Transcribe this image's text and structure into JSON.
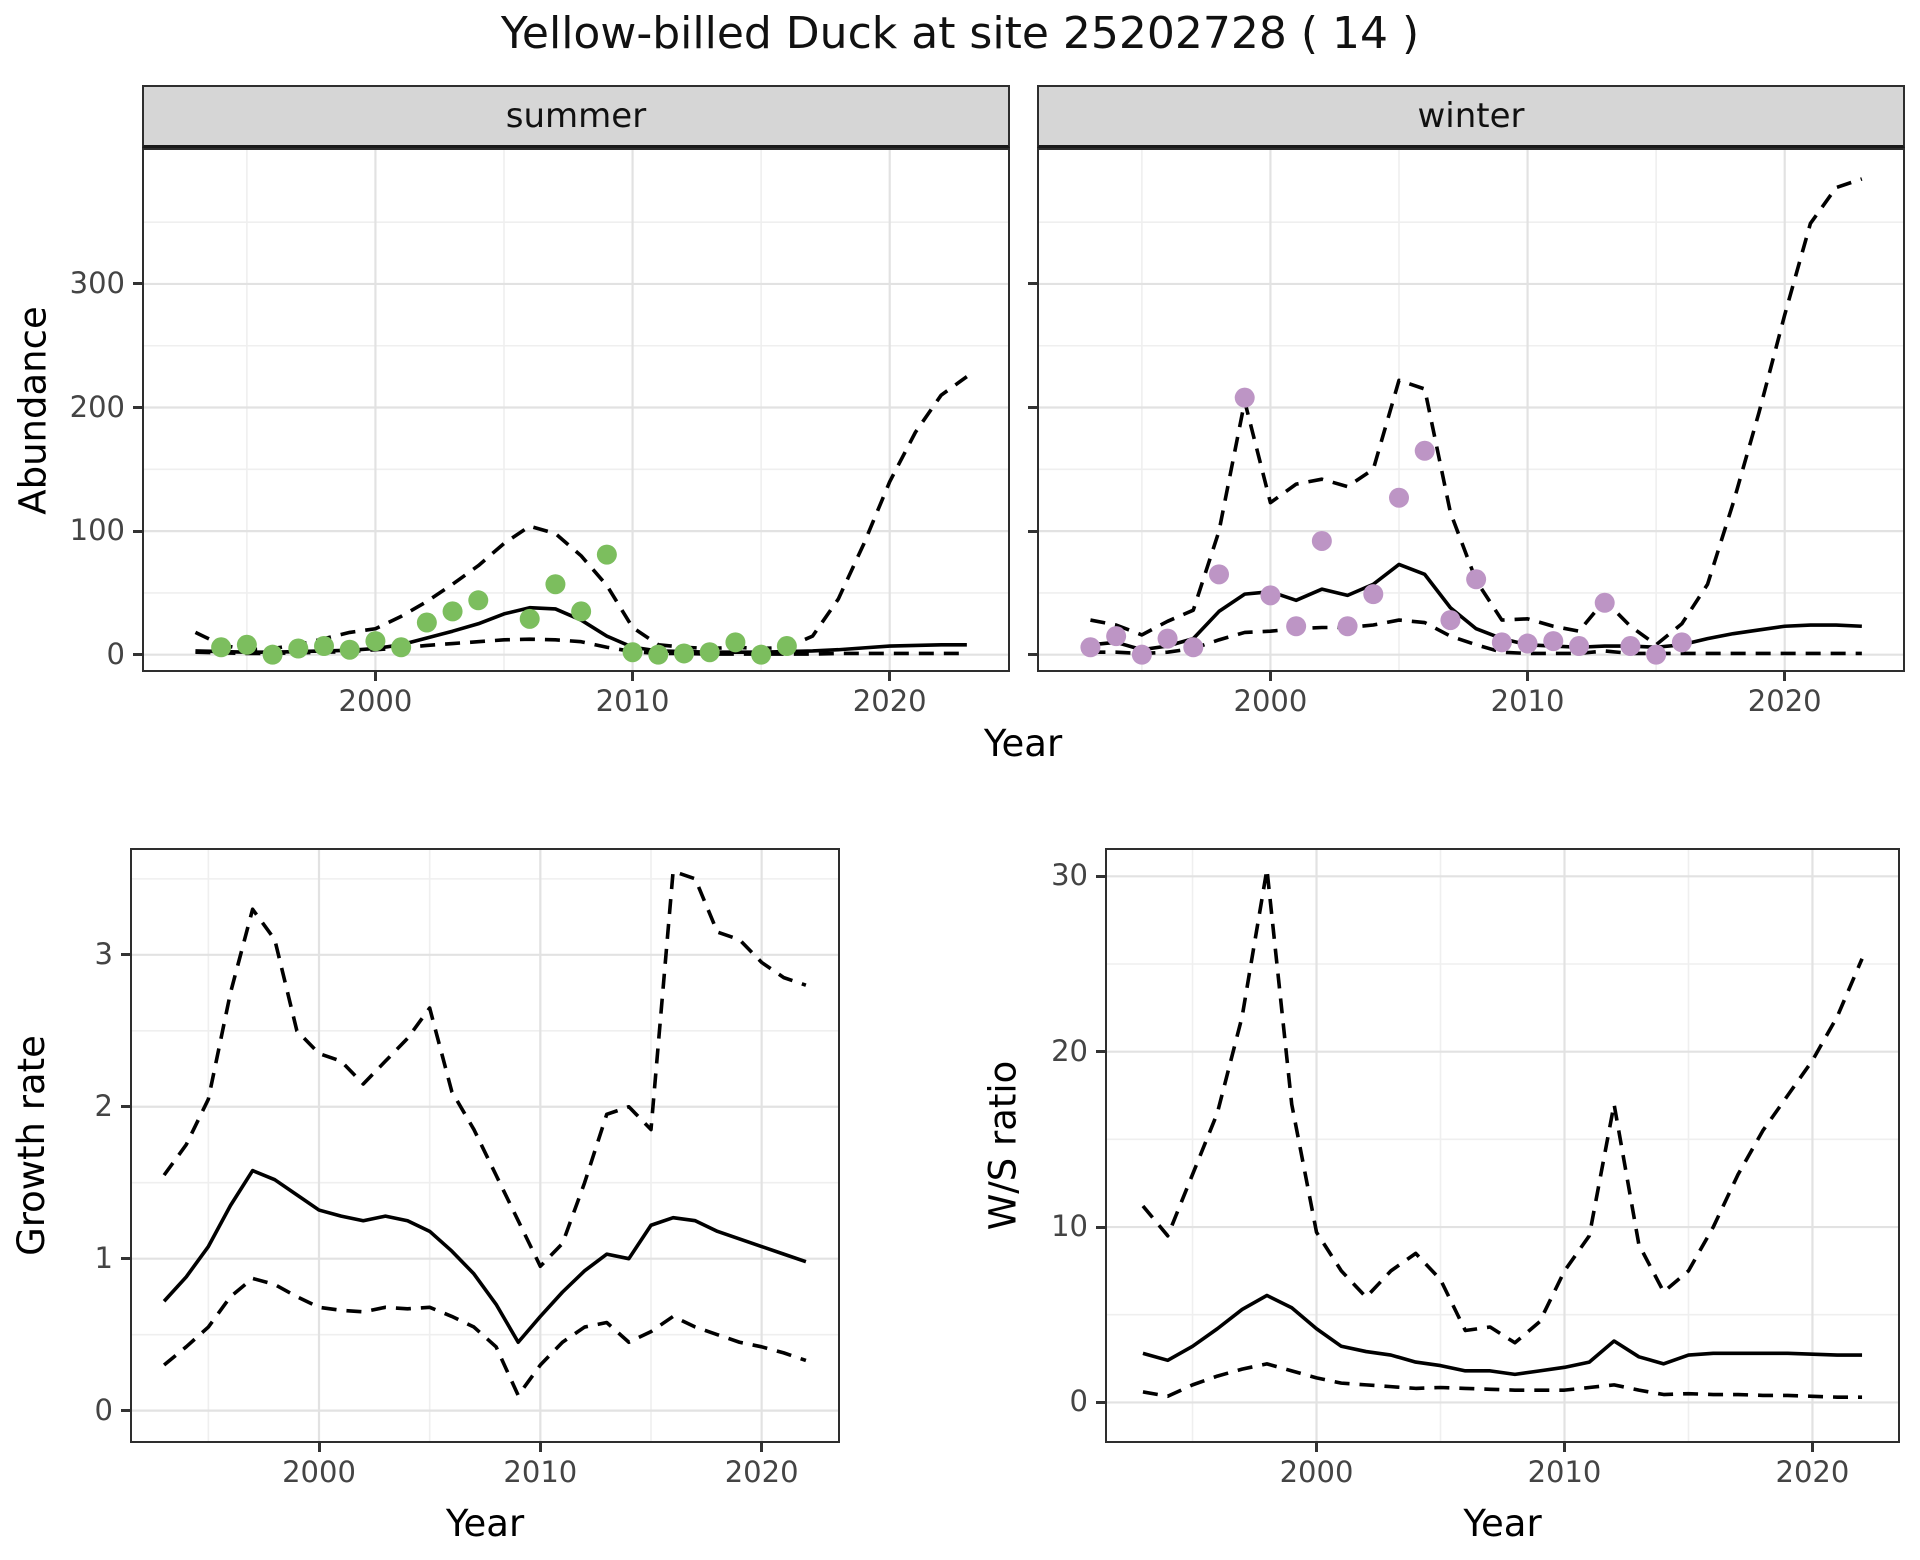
{
  "title": "Yellow-billed Duck at site 25202728 ( 14 )",
  "colors": {
    "summer_points": "#7cbe5e",
    "winter_points": "#bd95c5",
    "line": "#000000",
    "major_grid": "#e2e2e2",
    "minor_grid": "#efefef",
    "strip_bg": "#d6d6d6",
    "tick_text": "#444444"
  },
  "chart_data": [
    {
      "id": "abundance-summer",
      "type": "line",
      "facet_label": "summer",
      "xlabel": "Year",
      "ylabel": "Abundance",
      "xlim": [
        1991.0,
        2024.6
      ],
      "ylim": [
        -12.4,
        408.4
      ],
      "xticks": [
        2000,
        2010,
        2020
      ],
      "yticks": [
        0,
        100,
        200,
        300
      ],
      "xtick_labels": [
        "2000",
        "2010",
        "2020"
      ],
      "ytick_labels": [
        "0",
        "100",
        "200",
        "300"
      ],
      "grid": true,
      "legend": "none",
      "line_years": [
        1993,
        1994,
        1995,
        1996,
        1997,
        1998,
        1999,
        2000,
        2001,
        2002,
        2003,
        2004,
        2005,
        2006,
        2007,
        2008,
        2009,
        2010,
        2011,
        2012,
        2013,
        2014,
        2015,
        2016,
        2017,
        2018,
        2019,
        2020,
        2021,
        2022,
        2023
      ],
      "series": [
        {
          "name": "upper 95% CI",
          "style": "dashed",
          "values": [
            18,
            8,
            4,
            5,
            8,
            13,
            18,
            21,
            31,
            43,
            57,
            72,
            90,
            104,
            98,
            80,
            56,
            22,
            8,
            6,
            5,
            6,
            5,
            6,
            15,
            45,
            90,
            140,
            180,
            210,
            225
          ]
        },
        {
          "name": "median",
          "style": "solid",
          "values": [
            3,
            2.5,
            2,
            2,
            2.5,
            3,
            3.5,
            5,
            8,
            13.5,
            19,
            25,
            33,
            38,
            37,
            28,
            15,
            6,
            3,
            2.5,
            2,
            2,
            2,
            2.5,
            3,
            4,
            5.5,
            7,
            7.5,
            8,
            8
          ]
        },
        {
          "name": "lower 95% CI",
          "style": "dashed",
          "values": [
            2,
            1.5,
            1,
            1,
            1.5,
            2,
            2.5,
            4,
            5.5,
            7.5,
            9,
            10.5,
            12,
            12.5,
            12,
            10.5,
            6,
            2.5,
            1,
            1,
            0.5,
            0.5,
            0.5,
            0.5,
            0.5,
            1,
            1,
            1,
            1,
            1,
            1
          ]
        }
      ],
      "points": {
        "name": "observed counts",
        "color_key": "summer_points",
        "years": [
          1994,
          1995,
          1996,
          1997,
          1998,
          1999,
          2000,
          2001,
          2002,
          2003,
          2004,
          2006,
          2007,
          2008,
          2009,
          2010,
          2011,
          2012,
          2013,
          2014,
          2015,
          2016
        ],
        "values": [
          6,
          8,
          0,
          5,
          7,
          4,
          11,
          6,
          26,
          35,
          44,
          29,
          57,
          35,
          81,
          2,
          0,
          1,
          2,
          10,
          0,
          7
        ]
      }
    },
    {
      "id": "abundance-winter",
      "type": "line",
      "facet_label": "winter",
      "xlabel": "Year",
      "ylabel": "Abundance",
      "xlim": [
        1991.0,
        2024.6
      ],
      "ylim": [
        -12.4,
        408.4
      ],
      "xticks": [
        2000,
        2010,
        2020
      ],
      "yticks": [
        0,
        100,
        200,
        300
      ],
      "xtick_labels": [
        "2000",
        "2010",
        "2020"
      ],
      "ytick_labels": [
        "0",
        "100",
        "200",
        "300"
      ],
      "grid": true,
      "legend": "none",
      "line_years": [
        1993,
        1994,
        1995,
        1996,
        1997,
        1998,
        1999,
        2000,
        2001,
        2002,
        2003,
        2004,
        2005,
        2006,
        2007,
        2008,
        2009,
        2010,
        2011,
        2012,
        2013,
        2014,
        2015,
        2016,
        2017,
        2018,
        2019,
        2020,
        2021,
        2022,
        2023
      ],
      "series": [
        {
          "name": "upper 95% CI",
          "style": "dashed",
          "values": [
            28,
            24,
            16,
            27,
            36,
            100,
            205,
            123,
            138,
            142,
            136,
            150,
            222,
            215,
            115,
            60,
            28,
            29,
            23,
            19,
            44,
            23,
            8,
            25,
            57,
            123,
            196,
            275,
            349,
            378,
            385
          ]
        },
        {
          "name": "median",
          "style": "solid",
          "values": [
            8,
            10,
            4,
            7,
            13,
            35,
            49,
            51,
            44,
            53,
            48,
            57,
            73,
            65,
            38,
            21,
            13,
            8,
            7,
            6,
            7,
            7,
            6,
            8,
            13,
            17,
            20,
            23,
            24,
            24,
            23
          ]
        },
        {
          "name": "lower 95% CI",
          "style": "dashed",
          "values": [
            2,
            2,
            1,
            2,
            5,
            12,
            18,
            19,
            21,
            22,
            22,
            24,
            28,
            26,
            15,
            8,
            2,
            1,
            1,
            1,
            3,
            1,
            1,
            1,
            1,
            1,
            1,
            1,
            1,
            1,
            1
          ]
        }
      ],
      "points": {
        "name": "observed counts",
        "color_key": "winter_points",
        "years": [
          1993,
          1994,
          1995,
          1996,
          1997,
          1998,
          1999,
          2000,
          2001,
          2002,
          2003,
          2004,
          2005,
          2006,
          2007,
          2008,
          2009,
          2010,
          2011,
          2012,
          2013,
          2014,
          2015,
          2016
        ],
        "values": [
          6,
          15,
          0,
          13,
          6,
          65,
          208,
          48,
          23,
          92,
          23,
          49,
          127,
          165,
          28,
          61,
          10,
          9,
          11,
          7,
          42,
          7,
          0,
          10
        ]
      }
    },
    {
      "id": "growth-rate",
      "type": "line",
      "facet_label": "",
      "xlabel": "Year",
      "ylabel": "Growth rate",
      "xlim": [
        1991.55,
        2023.45
      ],
      "ylim": [
        -0.2,
        3.69
      ],
      "xticks": [
        2000,
        2010,
        2020
      ],
      "yticks": [
        0,
        1,
        2,
        3
      ],
      "xtick_labels": [
        "2000",
        "2010",
        "2020"
      ],
      "ytick_labels": [
        "0",
        "1",
        "2",
        "3"
      ],
      "grid": true,
      "legend": "none",
      "line_years": [
        1993,
        1994,
        1995,
        1996,
        1997,
        1998,
        1999,
        2000,
        2001,
        2002,
        2003,
        2004,
        2005,
        2006,
        2007,
        2008,
        2009,
        2010,
        2011,
        2012,
        2013,
        2014,
        2015,
        2016,
        2017,
        2018,
        2019,
        2020,
        2021,
        2022
      ],
      "series": [
        {
          "name": "upper 95% CI",
          "style": "dashed",
          "values": [
            1.55,
            1.75,
            2.05,
            2.75,
            3.3,
            3.1,
            2.5,
            2.35,
            2.3,
            2.15,
            2.3,
            2.45,
            2.65,
            2.1,
            1.85,
            1.55,
            1.25,
            0.95,
            1.1,
            1.5,
            1.95,
            2.0,
            1.85,
            3.55,
            3.5,
            3.15,
            3.1,
            2.95,
            2.85,
            2.8
          ]
        },
        {
          "name": "median",
          "style": "solid",
          "values": [
            0.72,
            0.88,
            1.08,
            1.35,
            1.58,
            1.52,
            1.42,
            1.32,
            1.28,
            1.25,
            1.28,
            1.25,
            1.18,
            1.05,
            0.9,
            0.7,
            0.45,
            0.62,
            0.78,
            0.92,
            1.03,
            1.0,
            1.22,
            1.27,
            1.25,
            1.18,
            1.13,
            1.08,
            1.03,
            0.98
          ]
        },
        {
          "name": "lower 95% CI",
          "style": "dashed",
          "values": [
            0.3,
            0.42,
            0.55,
            0.75,
            0.87,
            0.83,
            0.75,
            0.68,
            0.66,
            0.65,
            0.68,
            0.67,
            0.68,
            0.62,
            0.55,
            0.42,
            0.1,
            0.3,
            0.45,
            0.55,
            0.58,
            0.45,
            0.52,
            0.62,
            0.55,
            0.5,
            0.45,
            0.42,
            0.38,
            0.33
          ]
        }
      ],
      "points": null
    },
    {
      "id": "ws-ratio",
      "type": "line",
      "facet_label": "",
      "xlabel": "Year",
      "ylabel": "W/S ratio",
      "xlim": [
        1991.55,
        2023.45
      ],
      "ylim": [
        -2.2,
        31.5
      ],
      "xticks": [
        2000,
        2010,
        2020
      ],
      "yticks": [
        0,
        10,
        20,
        30
      ],
      "xtick_labels": [
        "2000",
        "2010",
        "2020"
      ],
      "ytick_labels": [
        "0",
        "10",
        "20",
        "30"
      ],
      "grid": true,
      "legend": "none",
      "line_years": [
        1993,
        1994,
        1995,
        1996,
        1997,
        1998,
        1999,
        2000,
        2001,
        2002,
        2003,
        2004,
        2005,
        2006,
        2007,
        2008,
        2009,
        2010,
        2011,
        2012,
        2013,
        2014,
        2015,
        2016,
        2017,
        2018,
        2019,
        2020,
        2021,
        2022
      ],
      "series": [
        {
          "name": "upper 95% CI",
          "style": "dashed",
          "values": [
            11.2,
            9.5,
            13,
            16.5,
            22,
            30.4,
            17,
            9.7,
            7.5,
            6.0,
            7.5,
            8.5,
            7.0,
            4.1,
            4.3,
            3.4,
            4.6,
            7.5,
            9.5,
            17.0,
            9.0,
            6.3,
            7.5,
            10,
            13,
            15.5,
            17.5,
            19.5,
            22,
            25.3
          ]
        },
        {
          "name": "median",
          "style": "solid",
          "values": [
            2.8,
            2.4,
            3.2,
            4.2,
            5.3,
            6.1,
            5.4,
            4.2,
            3.2,
            2.9,
            2.7,
            2.3,
            2.1,
            1.8,
            1.8,
            1.6,
            1.8,
            2.0,
            2.3,
            3.5,
            2.6,
            2.2,
            2.7,
            2.8,
            2.8,
            2.8,
            2.8,
            2.75,
            2.7,
            2.7
          ]
        },
        {
          "name": "lower 95% CI",
          "style": "dashed",
          "values": [
            0.6,
            0.35,
            1.0,
            1.5,
            1.9,
            2.2,
            1.8,
            1.4,
            1.1,
            1.0,
            0.9,
            0.8,
            0.85,
            0.8,
            0.75,
            0.7,
            0.7,
            0.7,
            0.85,
            1.0,
            0.7,
            0.45,
            0.5,
            0.45,
            0.45,
            0.4,
            0.4,
            0.35,
            0.3,
            0.3
          ]
        }
      ],
      "points": null
    }
  ]
}
